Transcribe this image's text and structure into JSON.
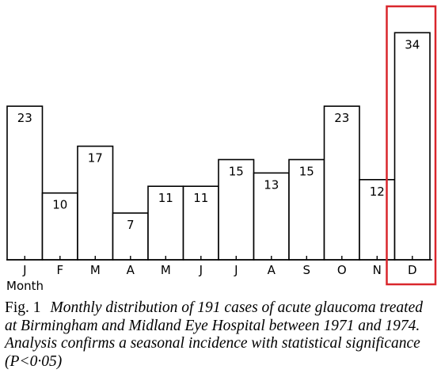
{
  "chart_data": {
    "type": "bar",
    "categories": [
      "J",
      "F",
      "M",
      "A",
      "M",
      "J",
      "J",
      "A",
      "S",
      "O",
      "N",
      "D"
    ],
    "values": [
      23,
      10,
      17,
      7,
      11,
      11,
      15,
      13,
      15,
      23,
      12,
      34
    ],
    "value_labels": [
      "23",
      "10",
      "17",
      "7",
      "11",
      "11",
      "15",
      "13",
      "15",
      "23",
      "12",
      "34"
    ],
    "xlabel": "Month",
    "ylabel": "",
    "ylim": [
      0,
      37
    ],
    "grid": false,
    "highlighted_category": "D",
    "highlight_color": "#d9262c"
  },
  "caption": {
    "label": "Fig. 1",
    "text": "Monthly distribution of 191 cases of acute glaucoma treated at Birmingham and Midland Eye Hospital between 1971 and 1974. Analysis confirms a seasonal incidence with statistical significance (P<0·05)"
  }
}
